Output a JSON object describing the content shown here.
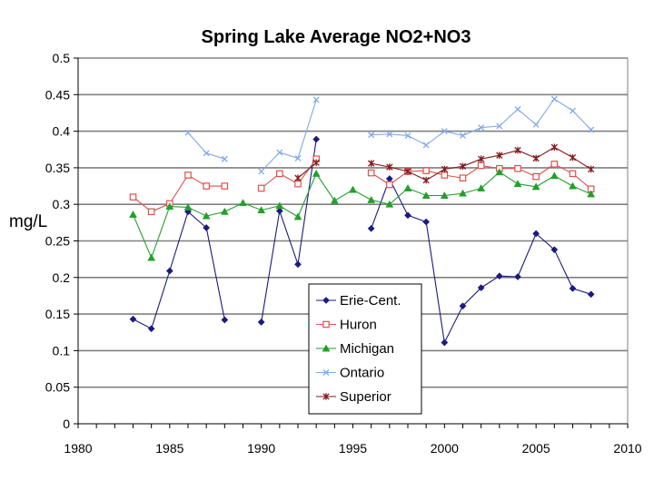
{
  "chart_data": {
    "type": "line",
    "title": "Spring Lake Average NO2+NO3",
    "xlabel": "",
    "ylabel": "mg/L",
    "xlim": [
      1980,
      2010
    ],
    "ylim": [
      0,
      0.5
    ],
    "x_ticks": [
      "1980",
      "1985",
      "1990",
      "1995",
      "2000",
      "2005",
      "2010"
    ],
    "y_ticks": [
      "0",
      "0.05",
      "0.1",
      "0.15",
      "0.2",
      "0.25",
      "0.3",
      "0.35",
      "0.4",
      "0.45",
      "0.5"
    ],
    "grid": "horizontal",
    "legend_position": "bottom-center",
    "series": [
      {
        "name": "Erie-Cent.",
        "color": "#1a1a80",
        "marker": "diamond",
        "segments": [
          [
            [
              1983,
              0.143
            ],
            [
              1984,
              0.13
            ],
            [
              1985,
              0.209
            ],
            [
              1986,
              0.29
            ],
            [
              1987,
              0.268
            ],
            [
              1988,
              0.142
            ]
          ],
          [
            [
              1990,
              0.139
            ],
            [
              1991,
              0.291
            ],
            [
              1992,
              0.218
            ],
            [
              1993,
              0.389
            ]
          ],
          [
            [
              1996,
              0.267
            ],
            [
              1997,
              0.335
            ],
            [
              1998,
              0.285
            ],
            [
              1999,
              0.276
            ],
            [
              2000,
              0.111
            ],
            [
              2001,
              0.161
            ],
            [
              2002,
              0.186
            ],
            [
              2003,
              0.202
            ],
            [
              2004,
              0.201
            ],
            [
              2005,
              0.26
            ],
            [
              2006,
              0.238
            ],
            [
              2007,
              0.185
            ],
            [
              2008,
              0.177
            ]
          ]
        ]
      },
      {
        "name": "Huron",
        "color": "#e0504a",
        "marker": "square-open",
        "segments": [
          [
            [
              1983,
              0.31
            ],
            [
              1984,
              0.29
            ],
            [
              1985,
              0.301
            ],
            [
              1986,
              0.34
            ],
            [
              1987,
              0.325
            ],
            [
              1988,
              0.325
            ]
          ],
          [
            [
              1990,
              0.322
            ],
            [
              1991,
              0.342
            ],
            [
              1992,
              0.328
            ],
            [
              1993,
              0.362
            ]
          ],
          [
            [
              1996,
              0.343
            ],
            [
              1997,
              0.327
            ],
            [
              1998,
              0.345
            ],
            [
              1999,
              0.346
            ],
            [
              2000,
              0.34
            ],
            [
              2001,
              0.336
            ],
            [
              2002,
              0.353
            ],
            [
              2003,
              0.349
            ],
            [
              2004,
              0.349
            ],
            [
              2005,
              0.338
            ],
            [
              2006,
              0.355
            ],
            [
              2007,
              0.342
            ],
            [
              2008,
              0.321
            ]
          ]
        ]
      },
      {
        "name": "Michigan",
        "color": "#22a02a",
        "marker": "triangle",
        "segments": [
          [
            [
              1983,
              0.286
            ],
            [
              1984,
              0.227
            ],
            [
              1985,
              0.297
            ],
            [
              1986,
              0.296
            ],
            [
              1987,
              0.284
            ],
            [
              1988,
              0.29
            ],
            [
              1989,
              0.302
            ],
            [
              1990,
              0.292
            ],
            [
              1991,
              0.298
            ],
            [
              1992,
              0.283
            ],
            [
              1993,
              0.342
            ],
            [
              1994,
              0.305
            ],
            [
              1995,
              0.32
            ],
            [
              1996,
              0.306
            ],
            [
              1997,
              0.3
            ],
            [
              1998,
              0.322
            ],
            [
              1999,
              0.312
            ],
            [
              2000,
              0.312
            ],
            [
              2001,
              0.315
            ],
            [
              2002,
              0.322
            ],
            [
              2003,
              0.344
            ],
            [
              2004,
              0.328
            ],
            [
              2005,
              0.324
            ],
            [
              2006,
              0.339
            ],
            [
              2007,
              0.325
            ],
            [
              2008,
              0.314
            ]
          ]
        ]
      },
      {
        "name": "Ontario",
        "color": "#80a8e8",
        "marker": "x",
        "segments": [
          [
            [
              1986,
              0.398
            ],
            [
              1987,
              0.37
            ],
            [
              1988,
              0.362
            ]
          ],
          [
            [
              1990,
              0.345
            ],
            [
              1991,
              0.371
            ],
            [
              1992,
              0.363
            ],
            [
              1993,
              0.443
            ]
          ],
          [
            [
              1996,
              0.395
            ],
            [
              1997,
              0.396
            ],
            [
              1998,
              0.394
            ],
            [
              1999,
              0.381
            ],
            [
              2000,
              0.4
            ],
            [
              2001,
              0.394
            ],
            [
              2002,
              0.405
            ],
            [
              2003,
              0.407
            ],
            [
              2004,
              0.43
            ],
            [
              2005,
              0.409
            ],
            [
              2006,
              0.444
            ],
            [
              2007,
              0.428
            ],
            [
              2008,
              0.402
            ]
          ]
        ]
      },
      {
        "name": "Superior",
        "color": "#801a1a",
        "marker": "star",
        "segments": [
          [
            [
              1992,
              0.336
            ],
            [
              1993,
              0.357
            ]
          ],
          [
            [
              1996,
              0.356
            ],
            [
              1997,
              0.351
            ],
            [
              1998,
              0.345
            ],
            [
              1999,
              0.333
            ],
            [
              2000,
              0.348
            ],
            [
              2001,
              0.352
            ],
            [
              2002,
              0.362
            ],
            [
              2003,
              0.367
            ],
            [
              2004,
              0.374
            ],
            [
              2005,
              0.363
            ],
            [
              2006,
              0.378
            ],
            [
              2007,
              0.364
            ],
            [
              2008,
              0.348
            ]
          ]
        ]
      }
    ]
  }
}
